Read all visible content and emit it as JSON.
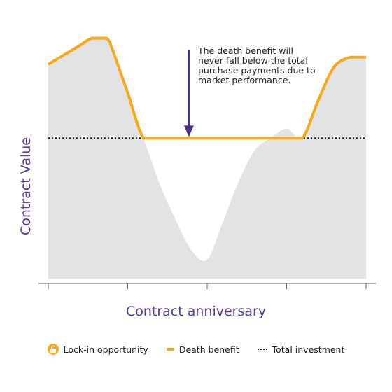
{
  "colors": {
    "area": "#e2e3e4",
    "death_benefit": "#f5a91c",
    "total_investment": "#222222",
    "arrow": "#4b2f8f",
    "axis_label": "#5b3c99",
    "axis": "#666666"
  },
  "annotation": {
    "lines": [
      "The death benefit will",
      "never fall below the total",
      "purchase payments due to",
      "market performance."
    ]
  },
  "legend": {
    "lock_icon": "lock-icon",
    "items": [
      {
        "label": "Lock-in opportunity"
      },
      {
        "label": "Death benefit"
      },
      {
        "label": "Total investment"
      }
    ]
  },
  "chart_data": {
    "type": "area",
    "xlabel": "Contract anniversary",
    "ylabel": "Contract Value",
    "xlim": [
      0,
      4
    ],
    "ylim": [
      0,
      100
    ],
    "grid": false,
    "legend_position": "bottom",
    "tick_labels": [],
    "contract_value": {
      "x": [
        0,
        0.2,
        0.4,
        0.55,
        0.72,
        0.76,
        0.8,
        1.0,
        1.2,
        1.4,
        1.6,
        1.8,
        2.0,
        2.2,
        2.4,
        2.6,
        2.8,
        3.0,
        3.2,
        3.4,
        3.6,
        3.8,
        3.9,
        4.0
      ],
      "y": [
        90,
        94,
        98,
        101,
        101,
        100,
        97,
        78,
        59,
        40,
        25,
        12,
        8,
        24,
        41,
        54,
        59,
        63,
        59,
        75,
        89,
        93,
        93,
        93
      ]
    },
    "death_benefit": {
      "x": [
        0,
        0.2,
        0.4,
        0.55,
        0.72,
        0.76,
        0.8,
        1.0,
        1.2,
        1.4,
        1.6,
        1.8,
        2.0,
        2.2,
        2.4,
        2.6,
        2.8,
        3.0,
        3.2,
        3.4,
        3.6,
        3.8,
        3.9,
        4.0
      ],
      "y": [
        90,
        94,
        98,
        101,
        101,
        100,
        97,
        78,
        59,
        59,
        59,
        59,
        59,
        59,
        59,
        59,
        59,
        59,
        59,
        75,
        89,
        93,
        93,
        93
      ]
    },
    "total_investment": 59,
    "annotation_arrow": {
      "x": 1.77,
      "y_from": 96,
      "y_to": 59
    }
  }
}
